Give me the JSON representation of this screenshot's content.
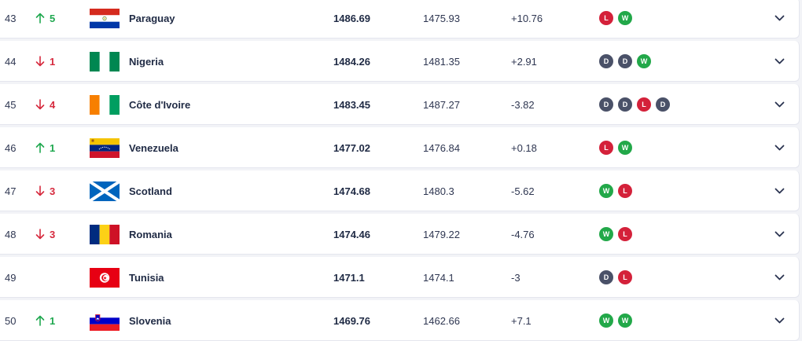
{
  "colors": {
    "up": "#1fa84f",
    "down": "#d62a3e",
    "win": "#22a849",
    "loss": "#d4213a",
    "draw": "#4a5168"
  },
  "rows": [
    {
      "rank": "43",
      "movement": {
        "dir": "up",
        "icon": "arrow-up-icon",
        "value": "5"
      },
      "flag": "paraguay",
      "team": "Paraguay",
      "points": "1486.69",
      "previous": "1475.93",
      "diff": "+10.76",
      "form": [
        "L",
        "W"
      ]
    },
    {
      "rank": "44",
      "movement": {
        "dir": "down",
        "icon": "arrow-down-icon",
        "value": "1"
      },
      "flag": "nigeria",
      "team": "Nigeria",
      "points": "1484.26",
      "previous": "1481.35",
      "diff": "+2.91",
      "form": [
        "D",
        "D",
        "W"
      ]
    },
    {
      "rank": "45",
      "movement": {
        "dir": "down",
        "icon": "arrow-down-icon",
        "value": "4"
      },
      "flag": "cote-divoire",
      "team": "Côte d'Ivoire",
      "points": "1483.45",
      "previous": "1487.27",
      "diff": "-3.82",
      "form": [
        "D",
        "D",
        "L",
        "D"
      ]
    },
    {
      "rank": "46",
      "movement": {
        "dir": "up",
        "icon": "arrow-up-icon",
        "value": "1"
      },
      "flag": "venezuela",
      "team": "Venezuela",
      "points": "1477.02",
      "previous": "1476.84",
      "diff": "+0.18",
      "form": [
        "L",
        "W"
      ]
    },
    {
      "rank": "47",
      "movement": {
        "dir": "down",
        "icon": "arrow-down-icon",
        "value": "3"
      },
      "flag": "scotland",
      "team": "Scotland",
      "points": "1474.68",
      "previous": "1480.3",
      "diff": "-5.62",
      "form": [
        "W",
        "L"
      ]
    },
    {
      "rank": "48",
      "movement": {
        "dir": "down",
        "icon": "arrow-down-icon",
        "value": "3"
      },
      "flag": "romania",
      "team": "Romania",
      "points": "1474.46",
      "previous": "1479.22",
      "diff": "-4.76",
      "form": [
        "W",
        "L"
      ]
    },
    {
      "rank": "49",
      "movement": {
        "dir": "none",
        "icon": "no-change-dot-icon",
        "value": ""
      },
      "flag": "tunisia",
      "team": "Tunisia",
      "points": "1471.1",
      "previous": "1474.1",
      "diff": "-3",
      "form": [
        "D",
        "L"
      ]
    },
    {
      "rank": "50",
      "movement": {
        "dir": "up",
        "icon": "arrow-up-icon",
        "value": "1"
      },
      "flag": "slovenia",
      "team": "Slovenia",
      "points": "1469.76",
      "previous": "1462.66",
      "diff": "+7.1",
      "form": [
        "W",
        "W"
      ]
    }
  ]
}
